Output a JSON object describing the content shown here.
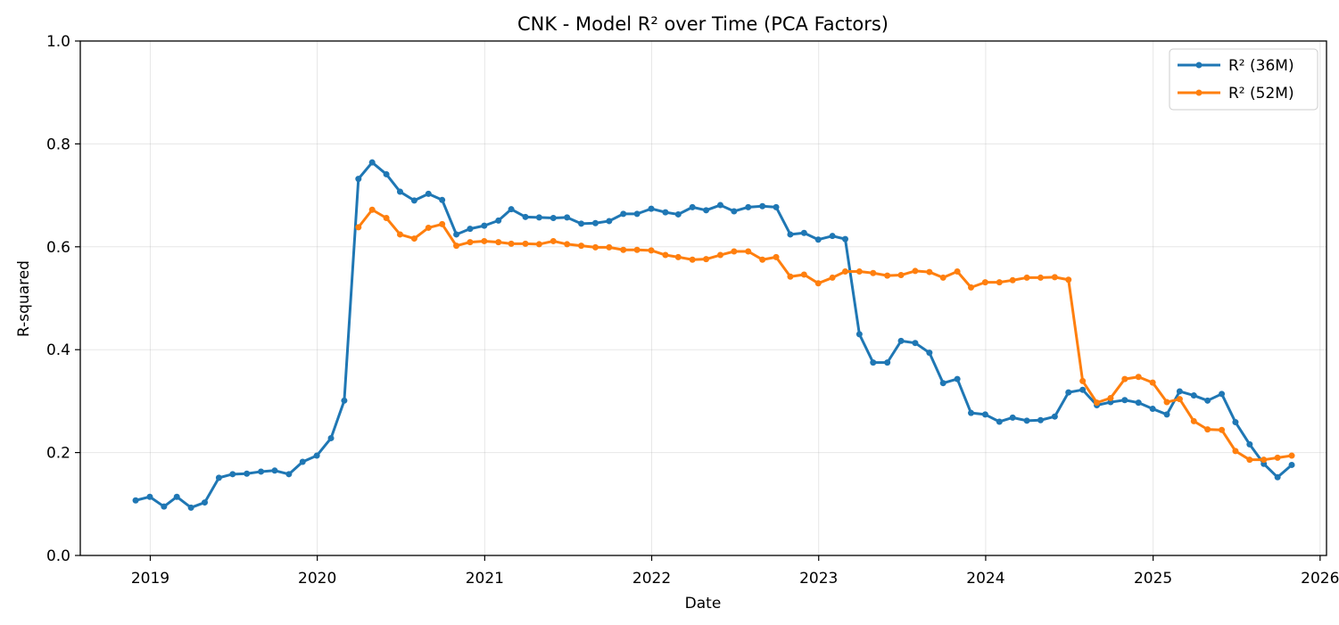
{
  "chart_data": {
    "type": "line",
    "title": "CNK - Model R² over Time (PCA Factors)",
    "xlabel": "Date",
    "ylabel": "R-squared",
    "xlim": [
      "2018-08-01",
      "2026-01-15"
    ],
    "ylim": [
      0,
      1
    ],
    "x_ticks": [
      "2019",
      "2020",
      "2021",
      "2022",
      "2023",
      "2024",
      "2025",
      "2026"
    ],
    "y_ticks": [
      "0.0",
      "0.2",
      "0.4",
      "0.6",
      "0.8",
      "1.0"
    ],
    "grid": true,
    "legend_position": "top-right",
    "series": [
      {
        "name": "R² (36M)",
        "color": "#1f77b4",
        "x": [
          "2018-11-30",
          "2018-12-31",
          "2019-01-31",
          "2019-02-28",
          "2019-03-31",
          "2019-04-30",
          "2019-05-31",
          "2019-06-30",
          "2019-07-31",
          "2019-08-31",
          "2019-09-30",
          "2019-10-31",
          "2019-11-30",
          "2019-12-31",
          "2020-01-31",
          "2020-02-29",
          "2020-03-31",
          "2020-04-30",
          "2020-05-31",
          "2020-06-30",
          "2020-07-31",
          "2020-08-31",
          "2020-09-30",
          "2020-10-31",
          "2020-11-30",
          "2020-12-31",
          "2021-01-31",
          "2021-02-28",
          "2021-03-31",
          "2021-04-30",
          "2021-05-31",
          "2021-06-30",
          "2021-07-31",
          "2021-08-31",
          "2021-09-30",
          "2021-10-31",
          "2021-11-30",
          "2021-12-31",
          "2022-01-31",
          "2022-02-28",
          "2022-03-31",
          "2022-04-30",
          "2022-05-31",
          "2022-06-30",
          "2022-07-31",
          "2022-08-31",
          "2022-09-30",
          "2022-10-31",
          "2022-11-30",
          "2022-12-31",
          "2023-01-31",
          "2023-02-28",
          "2023-03-31",
          "2023-04-30",
          "2023-05-31",
          "2023-06-30",
          "2023-07-31",
          "2023-08-31",
          "2023-09-30",
          "2023-10-31",
          "2023-11-30",
          "2023-12-31",
          "2024-01-31",
          "2024-02-29",
          "2024-03-31",
          "2024-04-30",
          "2024-05-31",
          "2024-06-30",
          "2024-07-31",
          "2024-08-31",
          "2024-09-30",
          "2024-10-31",
          "2024-11-30",
          "2024-12-31",
          "2025-01-31",
          "2025-02-28",
          "2025-03-31",
          "2025-04-30",
          "2025-05-31",
          "2025-06-30",
          "2025-07-31",
          "2025-08-31",
          "2025-09-30",
          "2025-10-31"
        ],
        "values": [
          0.107,
          0.114,
          0.095,
          0.114,
          0.093,
          0.103,
          0.151,
          0.158,
          0.159,
          0.163,
          0.165,
          0.158,
          0.182,
          0.194,
          0.228,
          0.301,
          0.732,
          0.764,
          0.741,
          0.707,
          0.69,
          0.703,
          0.691,
          0.624,
          0.635,
          0.641,
          0.651,
          0.673,
          0.658,
          0.657,
          0.656,
          0.657,
          0.645,
          0.646,
          0.65,
          0.664,
          0.664,
          0.674,
          0.667,
          0.663,
          0.677,
          0.671,
          0.681,
          0.669,
          0.677,
          0.679,
          0.677,
          0.624,
          0.627,
          0.614,
          0.621,
          0.615,
          0.43,
          0.375,
          0.375,
          0.417,
          0.413,
          0.394,
          0.335,
          0.343,
          0.277,
          0.274,
          0.26,
          0.268,
          0.262,
          0.263,
          0.27,
          0.317,
          0.322,
          0.292,
          0.298,
          0.302,
          0.297,
          0.285,
          0.274,
          0.319,
          0.311,
          0.301,
          0.314,
          0.259,
          0.216,
          0.178,
          0.152,
          0.176
        ]
      },
      {
        "name": "R² (52M)",
        "color": "#ff7f0e",
        "x": [
          "2020-03-31",
          "2020-04-30",
          "2020-05-31",
          "2020-06-30",
          "2020-07-31",
          "2020-08-31",
          "2020-09-30",
          "2020-10-31",
          "2020-11-30",
          "2020-12-31",
          "2021-01-31",
          "2021-02-28",
          "2021-03-31",
          "2021-04-30",
          "2021-05-31",
          "2021-06-30",
          "2021-07-31",
          "2021-08-31",
          "2021-09-30",
          "2021-10-31",
          "2021-11-30",
          "2021-12-31",
          "2022-01-31",
          "2022-02-28",
          "2022-03-31",
          "2022-04-30",
          "2022-05-31",
          "2022-06-30",
          "2022-07-31",
          "2022-08-31",
          "2022-09-30",
          "2022-10-31",
          "2022-11-30",
          "2022-12-31",
          "2023-01-31",
          "2023-02-28",
          "2023-03-31",
          "2023-04-30",
          "2023-05-31",
          "2023-06-30",
          "2023-07-31",
          "2023-08-31",
          "2023-09-30",
          "2023-10-31",
          "2023-11-30",
          "2023-12-31",
          "2024-01-31",
          "2024-02-29",
          "2024-03-31",
          "2024-04-30",
          "2024-05-31",
          "2024-06-30",
          "2024-07-31",
          "2024-08-31",
          "2024-09-30",
          "2024-10-31",
          "2024-11-30",
          "2024-12-31",
          "2025-01-31",
          "2025-02-28",
          "2025-03-31",
          "2025-04-30",
          "2025-05-31",
          "2025-06-30",
          "2025-07-31",
          "2025-08-31",
          "2025-09-30",
          "2025-10-31"
        ],
        "values": [
          0.638,
          0.672,
          0.656,
          0.624,
          0.616,
          0.637,
          0.644,
          0.602,
          0.609,
          0.611,
          0.609,
          0.606,
          0.606,
          0.605,
          0.611,
          0.605,
          0.602,
          0.599,
          0.599,
          0.594,
          0.594,
          0.593,
          0.584,
          0.58,
          0.575,
          0.576,
          0.584,
          0.591,
          0.591,
          0.575,
          0.58,
          0.542,
          0.546,
          0.529,
          0.54,
          0.552,
          0.552,
          0.549,
          0.544,
          0.545,
          0.553,
          0.551,
          0.54,
          0.552,
          0.521,
          0.531,
          0.531,
          0.535,
          0.54,
          0.54,
          0.541,
          0.536,
          0.339,
          0.297,
          0.306,
          0.343,
          0.347,
          0.336,
          0.298,
          0.304,
          0.261,
          0.245,
          0.244,
          0.203,
          0.186,
          0.186,
          0.19,
          0.194
        ]
      }
    ]
  }
}
